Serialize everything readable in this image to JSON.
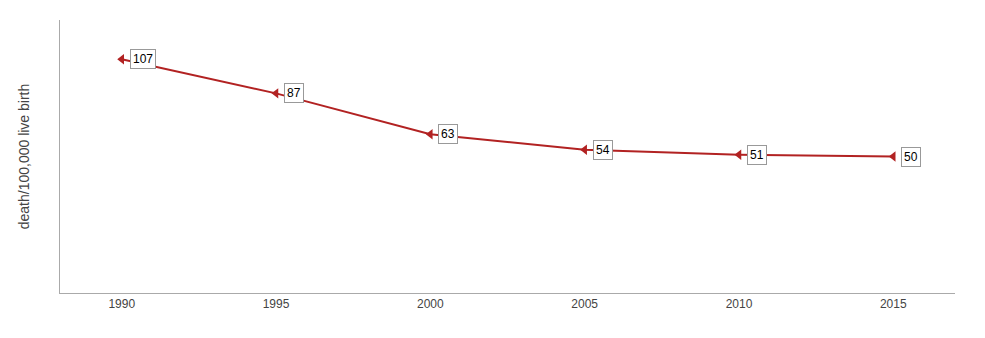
{
  "chart_data": {
    "type": "line",
    "x": [
      1990,
      1995,
      2000,
      2005,
      2010,
      2015
    ],
    "values": [
      107,
      87,
      63,
      54,
      51,
      50
    ],
    "color": "#b22222",
    "marker": "triangle-left",
    "ylabel": "death/100,000 live birth",
    "xlim": [
      1988,
      2017
    ],
    "xticks": [
      1990,
      1995,
      2000,
      2005,
      2010,
      2015
    ],
    "ylim": [
      -30,
      130
    ],
    "tick_labels": "x",
    "data_labels": true,
    "grid": false
  }
}
